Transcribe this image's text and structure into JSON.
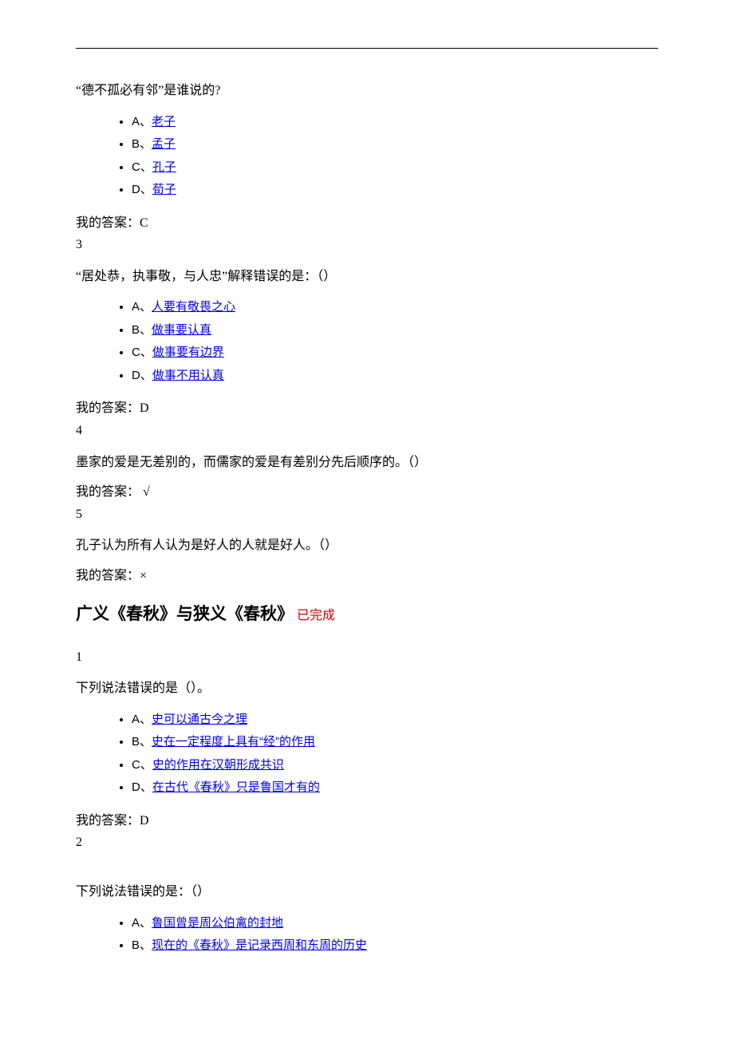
{
  "hr": true,
  "q2": {
    "text": "“德不孤必有邻”是谁说的?",
    "options": [
      {
        "letter": "A、",
        "text": "老子"
      },
      {
        "letter": "B、",
        "text": "孟子"
      },
      {
        "letter": "C、",
        "text": "孔子"
      },
      {
        "letter": "D、",
        "text": "荀子"
      }
    ],
    "answer_label": "我的答案：C",
    "next_num": "3"
  },
  "q3": {
    "text": "“居处恭，执事敬，与人忠”解释错误的是：（）",
    "options": [
      {
        "letter": "A、",
        "text": "人要有敬畏之心"
      },
      {
        "letter": "B、",
        "text": "做事要认真"
      },
      {
        "letter": "C、",
        "text": "做事要有边界"
      },
      {
        "letter": "D、",
        "text": "做事不用认真"
      }
    ],
    "answer_label": "我的答案：D",
    "next_num": "4"
  },
  "q4": {
    "text": "墨家的爱是无差别的，而儒家的爱是有差别分先后顺序的。（）",
    "answer_label": "我的答案： √",
    "next_num": "5"
  },
  "q5": {
    "text": "孔子认为所有人认为是好人的人就是好人。（）",
    "answer_label": "我的答案：×"
  },
  "section": {
    "title": "广义《春秋》与狭义《春秋》",
    "status": "已完成"
  },
  "s1": {
    "num": "1",
    "text": "下列说法错误的是（）。",
    "options": [
      {
        "letter": "A、",
        "text": "史可以通古今之理"
      },
      {
        "letter": "B、",
        "text": "史在一定程度上具有“经”的作用"
      },
      {
        "letter": "C、",
        "text": "史的作用在汉朝形成共识"
      },
      {
        "letter": "D、",
        "text": "在古代《春秋》只是鲁国才有的"
      }
    ],
    "answer_label": "我的答案：D",
    "next_num": "2"
  },
  "s2": {
    "text": "下列说法错误的是：（）",
    "options": [
      {
        "letter": "A、",
        "text": "鲁国曾是周公伯禽的封地"
      },
      {
        "letter": "B、",
        "text": "现在的《春秋》是记录西周和东周的历史"
      }
    ]
  }
}
